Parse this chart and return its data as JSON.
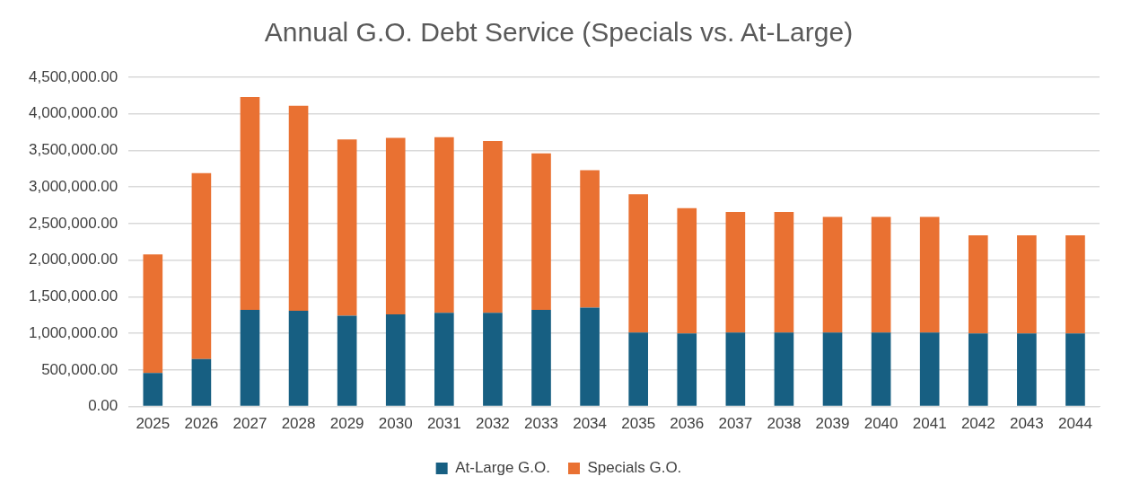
{
  "chart_data": {
    "type": "bar",
    "title": "Annual G.O. Debt Service (Specials vs. At-Large)",
    "stacked": true,
    "categories": [
      "2025",
      "2026",
      "2027",
      "2028",
      "2029",
      "2030",
      "2031",
      "2032",
      "2033",
      "2034",
      "2035",
      "2036",
      "2037",
      "2038",
      "2039",
      "2040",
      "2041",
      "2042",
      "2043",
      "2044"
    ],
    "series": [
      {
        "name": "At-Large G.O.",
        "color": "#175f82",
        "values": [
          460000,
          650000,
          1320000,
          1310000,
          1240000,
          1260000,
          1280000,
          1280000,
          1320000,
          1350000,
          1010000,
          1000000,
          1010000,
          1010000,
          1010000,
          1010000,
          1010000,
          1000000,
          1000000,
          1000000
        ]
      },
      {
        "name": "Specials G.O.",
        "color": "#e97132",
        "values": [
          1620000,
          2540000,
          2910000,
          2800000,
          2410000,
          2410000,
          2400000,
          2350000,
          2140000,
          1880000,
          1890000,
          1710000,
          1650000,
          1650000,
          1580000,
          1580000,
          1580000,
          1340000,
          1340000,
          1340000
        ]
      }
    ],
    "ylim": [
      0,
      4500000
    ],
    "yticks": [
      {
        "value": 0,
        "label": "0.00"
      },
      {
        "value": 500000,
        "label": "500,000.00"
      },
      {
        "value": 1000000,
        "label": "1,000,000.00"
      },
      {
        "value": 1500000,
        "label": "1,500,000.00"
      },
      {
        "value": 2000000,
        "label": "2,000,000.00"
      },
      {
        "value": 2500000,
        "label": "2,500,000.00"
      },
      {
        "value": 3000000,
        "label": "3,000,000.00"
      },
      {
        "value": 3500000,
        "label": "3,500,000.00"
      },
      {
        "value": 4000000,
        "label": "4,000,000.00"
      },
      {
        "value": 4500000,
        "label": "4,500,000.00"
      }
    ],
    "grid": "y",
    "legend": "bottom"
  }
}
